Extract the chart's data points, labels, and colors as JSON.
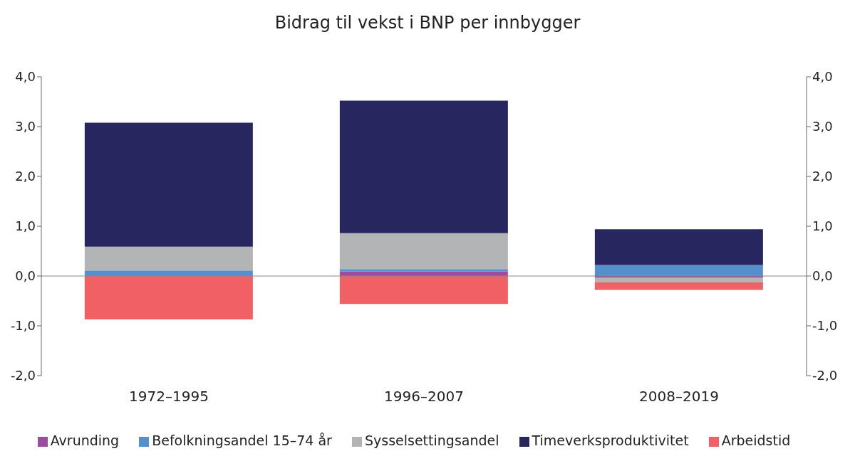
{
  "chart_data": {
    "type": "bar",
    "title": "Bidrag til vekst i BNP per innbygger",
    "categories": [
      "1972–1995",
      "1996–2007",
      "2008–2019"
    ],
    "stacked": true,
    "series": [
      {
        "name": "Avrunding",
        "color": "#9b4c9f",
        "values": [
          0,
          0.09,
          -0.03
        ]
      },
      {
        "name": "Befolkningsandel 15–74 år",
        "color": "#5690cc",
        "values": [
          0.11,
          0.05,
          0.22
        ]
      },
      {
        "name": "Sysselsettingsandel",
        "color": "#b3b4b6",
        "values": [
          0.48,
          0.72,
          -0.1
        ]
      },
      {
        "name": "Timeverksproduktivitet",
        "color": "#27265f",
        "values": [
          2.49,
          2.66,
          0.72
        ]
      },
      {
        "name": "Arbeidstid",
        "color": "#f06064",
        "values": [
          -0.87,
          -0.56,
          -0.15
        ]
      }
    ],
    "ylim": [
      -2,
      4
    ],
    "yticks": [
      {
        "value": -2,
        "label": "-2,0"
      },
      {
        "value": -1,
        "label": "-1,0"
      },
      {
        "value": 0,
        "label": "0,0"
      },
      {
        "value": 1,
        "label": "1,0"
      },
      {
        "value": 2,
        "label": "2,0"
      },
      {
        "value": 3,
        "label": "3,0"
      },
      {
        "value": 4,
        "label": "4,0"
      }
    ],
    "y2lim": [
      -2,
      4
    ],
    "y2ticks": [
      {
        "value": -2,
        "label": "-2,0"
      },
      {
        "value": -1,
        "label": "-1,0"
      },
      {
        "value": 0,
        "label": "0,0"
      },
      {
        "value": 1,
        "label": "1,0"
      },
      {
        "value": 2,
        "label": "2,0"
      },
      {
        "value": 3,
        "label": "3,0"
      },
      {
        "value": 4,
        "label": "4,0"
      }
    ],
    "legend": "bottom"
  }
}
